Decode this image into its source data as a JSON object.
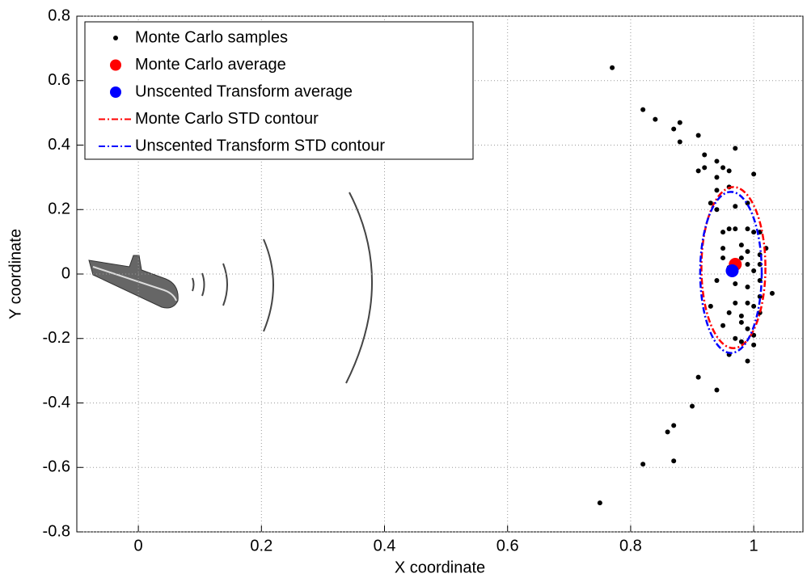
{
  "chart_data": {
    "type": "scatter",
    "xlabel": "X coordinate",
    "ylabel": "Y coordinate",
    "xlim": [
      -0.1,
      1.08
    ],
    "ylim": [
      -0.8,
      0.8
    ],
    "xticks": [
      0,
      0.2,
      0.4,
      0.6,
      0.8,
      1
    ],
    "yticks": [
      -0.8,
      -0.6,
      -0.4,
      -0.2,
      0,
      0.2,
      0.4,
      0.6,
      0.8
    ],
    "grid": true,
    "legend": "upper left",
    "series": [
      {
        "name": "Monte Carlo samples",
        "color": "#000000",
        "kind": "points",
        "x": [
          0.77,
          0.82,
          0.84,
          0.87,
          0.88,
          0.88,
          0.91,
          0.92,
          0.91,
          0.92,
          0.94,
          0.94,
          0.96,
          0.95,
          0.97,
          1.0,
          0.93,
          0.94,
          0.96,
          0.97,
          0.94,
          0.99,
          0.96,
          0.97,
          0.99,
          0.95,
          1.0,
          1.01,
          0.95,
          0.98,
          0.99,
          0.95,
          0.98,
          1.01,
          1.02,
          0.96,
          0.99,
          1.0,
          1.01,
          0.94,
          0.97,
          0.99,
          1.01,
          1.03,
          1.01,
          0.97,
          0.99,
          1.0,
          0.93,
          0.96,
          0.98,
          1.01,
          0.95,
          0.98,
          0.99,
          1.0,
          0.97,
          0.98,
          1.0,
          0.96,
          0.99,
          0.91,
          0.94,
          0.9,
          0.86,
          0.87,
          0.82,
          0.87,
          0.75
        ],
        "y": [
          0.64,
          0.51,
          0.48,
          0.45,
          0.47,
          0.41,
          0.43,
          0.37,
          0.32,
          0.33,
          0.35,
          0.3,
          0.32,
          0.33,
          0.39,
          0.31,
          0.22,
          0.26,
          0.27,
          0.21,
          0.2,
          0.22,
          0.14,
          0.14,
          0.14,
          0.13,
          0.13,
          0.13,
          0.08,
          0.09,
          0.07,
          0.05,
          0.05,
          0.06,
          0.08,
          0.02,
          0.03,
          0.01,
          0.03,
          -0.02,
          -0.03,
          -0.04,
          -0.02,
          -0.06,
          -0.07,
          -0.09,
          -0.09,
          -0.1,
          -0.1,
          -0.12,
          -0.13,
          -0.12,
          -0.16,
          -0.15,
          -0.17,
          -0.19,
          -0.2,
          -0.21,
          -0.22,
          -0.25,
          -0.27,
          -0.32,
          -0.36,
          -0.41,
          -0.49,
          -0.47,
          -0.59,
          -0.58,
          -0.71
        ]
      },
      {
        "name": "Monte Carlo average",
        "color": "#ff0000",
        "kind": "marker",
        "x": [
          0.97
        ],
        "y": [
          0.03
        ]
      },
      {
        "name": "Unscented Transform average",
        "color": "#0000ff",
        "kind": "marker",
        "x": [
          0.965
        ],
        "y": [
          0.01
        ]
      },
      {
        "name": "Monte Carlo STD contour",
        "color": "#ff0000",
        "kind": "contour",
        "center": [
          0.967,
          0.02
        ],
        "radii": [
          0.052,
          0.25
        ]
      },
      {
        "name": "Unscented Transform STD contour",
        "color": "#0000ff",
        "kind": "contour",
        "center": [
          0.963,
          0.005
        ],
        "radii": [
          0.05,
          0.25
        ]
      }
    ]
  }
}
